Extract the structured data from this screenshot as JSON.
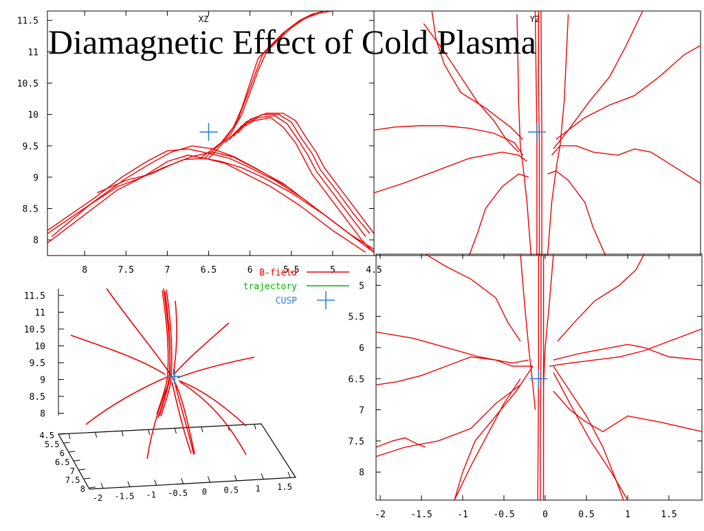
{
  "slide": {
    "title": "Diamagnetic Effect of Cold Plasma"
  },
  "legend": {
    "items": [
      {
        "label": "B-field",
        "color": "#ee0000",
        "marker": "line"
      },
      {
        "label": "trajectory",
        "color": "#00b000",
        "marker": "line"
      },
      {
        "label": "CUSP",
        "color": "#2f7fd8",
        "marker": "cross"
      }
    ]
  },
  "colors": {
    "field": "#ee0000",
    "trajectory": "#00b000",
    "cusp": "#2f7fd8",
    "frame": "#000000"
  },
  "chart_data": [
    {
      "id": "xz",
      "type": "line",
      "title": "XZ",
      "xlim": [
        8.45,
        4.5
      ],
      "ylim": [
        7.75,
        11.65
      ],
      "x_ticks": [
        "8",
        "7.5",
        "7",
        "6.5",
        "6",
        "5.5",
        "5",
        "4.5"
      ],
      "y_ticks": [
        "8",
        "8.5",
        "9",
        "9.5",
        "10",
        "10.5",
        "11",
        "11.5"
      ],
      "cusp": [
        6.5,
        9.72
      ],
      "series": [
        {
          "x": [
            8.45,
            7.95,
            7.6,
            7.3,
            7.0,
            6.75,
            6.55,
            6.35,
            6.1,
            5.85,
            5.5,
            5.1,
            4.7,
            4.5
          ],
          "y": [
            8.1,
            8.55,
            8.85,
            9.0,
            9.25,
            9.35,
            9.3,
            9.25,
            9.15,
            9.0,
            8.75,
            8.4,
            8.0,
            7.8
          ]
        },
        {
          "x": [
            8.45,
            7.9,
            7.55,
            7.25,
            7.0,
            6.75,
            6.5,
            6.25,
            6.0,
            5.7,
            5.35,
            4.95,
            4.55
          ],
          "y": [
            8.15,
            8.65,
            9.0,
            9.25,
            9.42,
            9.45,
            9.38,
            9.3,
            9.15,
            8.95,
            8.65,
            8.25,
            7.85
          ]
        },
        {
          "x": [
            8.4,
            7.9,
            7.5,
            7.2,
            6.95,
            6.7,
            6.45,
            6.2,
            5.9,
            5.55,
            5.15,
            4.75
          ],
          "y": [
            8.05,
            8.6,
            8.98,
            9.22,
            9.4,
            9.5,
            9.45,
            9.33,
            9.12,
            8.85,
            8.45,
            8.05
          ]
        },
        {
          "x": [
            8.45,
            7.95,
            7.6,
            7.3,
            7.05,
            6.8,
            6.55,
            6.3,
            6.05,
            5.75,
            5.4,
            5.0,
            4.6
          ],
          "y": [
            7.95,
            8.45,
            8.8,
            9.0,
            9.15,
            9.28,
            9.3,
            9.22,
            9.05,
            8.85,
            8.55,
            8.15,
            7.8
          ]
        },
        {
          "x": [
            7.85,
            7.5,
            7.2,
            6.95,
            6.7,
            6.45,
            6.2,
            5.95,
            5.6,
            5.2,
            4.8,
            4.5
          ],
          "y": [
            8.75,
            8.95,
            9.05,
            9.2,
            9.33,
            9.4,
            9.32,
            9.15,
            8.9,
            8.5,
            8.1,
            7.85
          ]
        },
        {
          "x": [
            6.6,
            6.35,
            6.2,
            6.1,
            6.0,
            5.9,
            5.75,
            5.6,
            5.45,
            5.3,
            5.15,
            5.0
          ],
          "y": [
            9.3,
            9.55,
            9.8,
            10.1,
            10.5,
            10.9,
            11.1,
            11.3,
            11.45,
            11.55,
            11.62,
            11.65
          ]
        },
        {
          "x": [
            6.55,
            6.3,
            6.15,
            6.05,
            5.95,
            5.85,
            5.7,
            5.55,
            5.4,
            5.25,
            5.1
          ],
          "y": [
            9.3,
            9.6,
            9.9,
            10.25,
            10.6,
            10.95,
            11.15,
            11.35,
            11.5,
            11.6,
            11.65
          ]
        },
        {
          "x": [
            6.5,
            6.25,
            6.1,
            6.0,
            5.9,
            5.8,
            5.65,
            5.5,
            5.35,
            5.2
          ],
          "y": [
            9.3,
            9.65,
            10.0,
            10.35,
            10.7,
            11.0,
            11.2,
            11.38,
            11.52,
            11.62
          ]
        },
        {
          "x": [
            6.3,
            6.15,
            5.95,
            5.75,
            5.6,
            5.45,
            5.35,
            5.25,
            5.05,
            4.85,
            4.65,
            4.5
          ],
          "y": [
            9.55,
            9.75,
            9.9,
            9.95,
            9.8,
            9.55,
            9.3,
            9.05,
            8.7,
            8.35,
            8.0,
            7.8
          ]
        },
        {
          "x": [
            6.25,
            6.1,
            5.9,
            5.7,
            5.55,
            5.42,
            5.3,
            5.2,
            5.0,
            4.8,
            4.6
          ],
          "y": [
            9.6,
            9.82,
            9.95,
            9.98,
            9.85,
            9.6,
            9.35,
            9.1,
            8.75,
            8.4,
            8.05
          ]
        },
        {
          "x": [
            6.2,
            6.05,
            5.85,
            5.65,
            5.5,
            5.38,
            5.25,
            5.15,
            4.95,
            4.75,
            4.55
          ],
          "y": [
            9.65,
            9.88,
            10.0,
            10.0,
            9.88,
            9.62,
            9.38,
            9.12,
            8.78,
            8.42,
            8.1
          ]
        },
        {
          "x": [
            6.15,
            6.0,
            5.8,
            5.6,
            5.45,
            5.33,
            5.2,
            5.1,
            4.9,
            4.7,
            4.5
          ],
          "y": [
            9.7,
            9.92,
            10.02,
            10.02,
            9.9,
            9.65,
            9.4,
            9.15,
            8.8,
            8.45,
            8.1
          ]
        }
      ]
    },
    {
      "id": "yz",
      "type": "line",
      "title": "YZ",
      "xlim": [
        -2.05,
        1.9
      ],
      "ylim": [
        7.75,
        11.65
      ],
      "cusp": [
        -0.08,
        9.72
      ],
      "series": [
        {
          "x": [
            -0.05,
            -0.05,
            -0.06,
            -0.06
          ],
          "y": [
            7.75,
            9.5,
            10.5,
            11.65
          ]
        },
        {
          "x": [
            -0.02,
            -0.02,
            -0.03
          ],
          "y": [
            7.75,
            9.7,
            11.65
          ]
        },
        {
          "x": [
            -0.08,
            -0.08,
            -0.1
          ],
          "y": [
            7.75,
            9.7,
            11.65
          ]
        },
        {
          "x": [
            -0.15,
            -0.2,
            -0.25,
            -0.28,
            -0.3,
            -0.32
          ],
          "y": [
            7.75,
            8.6,
            9.2,
            9.5,
            10.2,
            11.6
          ]
        },
        {
          "x": [
            0.05,
            0.1,
            0.16,
            0.2,
            0.25,
            0.3
          ],
          "y": [
            7.75,
            8.6,
            9.2,
            9.5,
            10.2,
            11.6
          ]
        },
        {
          "x": [
            -0.25,
            -0.35,
            -0.6,
            -0.9,
            -1.2,
            -1.5,
            -1.8,
            -2.05
          ],
          "y": [
            9.35,
            9.55,
            9.7,
            9.78,
            9.82,
            9.82,
            9.8,
            9.75
          ]
        },
        {
          "x": [
            0.1,
            0.2,
            0.4,
            0.6,
            0.9,
            1.1,
            1.3,
            1.6,
            1.9
          ],
          "y": [
            9.35,
            9.5,
            9.5,
            9.4,
            9.35,
            9.45,
            9.4,
            9.15,
            8.9
          ]
        },
        {
          "x": [
            -0.2,
            -0.3,
            -0.5,
            -0.9,
            -1.3,
            -1.7,
            -2.05
          ],
          "y": [
            9.25,
            9.35,
            9.4,
            9.3,
            9.1,
            8.9,
            8.75
          ]
        },
        {
          "x": [
            -0.18,
            -0.3,
            -0.5,
            -0.7,
            -0.8,
            -0.9
          ],
          "y": [
            9.0,
            9.05,
            8.85,
            8.5,
            8.1,
            7.75
          ]
        },
        {
          "x": [
            0.05,
            0.15,
            0.3,
            0.5,
            0.6,
            0.75
          ],
          "y": [
            9.05,
            9.1,
            8.95,
            8.6,
            8.2,
            7.75
          ]
        },
        {
          "x": [
            -0.25,
            -0.4,
            -0.7,
            -1.0,
            -1.2,
            -1.3,
            -1.35
          ],
          "y": [
            9.6,
            9.8,
            10.1,
            10.35,
            10.8,
            11.2,
            11.65
          ]
        },
        {
          "x": [
            0.15,
            0.3,
            0.5,
            0.8,
            1.1,
            1.4,
            1.7,
            1.9
          ],
          "y": [
            9.6,
            9.75,
            9.95,
            10.15,
            10.3,
            10.6,
            10.95,
            11.1
          ]
        },
        {
          "x": [
            -0.3,
            -0.45,
            -0.6,
            -0.8,
            -1.0,
            -1.2,
            -1.45
          ],
          "y": [
            9.4,
            9.6,
            9.9,
            10.2,
            10.6,
            11.0,
            11.45
          ]
        },
        {
          "x": [
            0.12,
            0.3,
            0.55,
            0.8,
            1.0,
            1.2
          ],
          "y": [
            9.45,
            9.75,
            10.2,
            10.6,
            11.1,
            11.65
          ]
        }
      ]
    },
    {
      "id": "xy",
      "type": "line",
      "xlim": [
        -2.05,
        1.9
      ],
      "ylim": [
        4.5,
        8.45
      ],
      "y_reversed": true,
      "x_ticks": [
        "-2",
        "-1.5",
        "-1",
        "-0.5",
        "0",
        "0.5",
        "1",
        "1.5"
      ],
      "y_ticks": [
        "5",
        "5.5",
        "6",
        "6.5",
        "7",
        "7.5",
        "8"
      ],
      "cusp": [
        -0.08,
        6.5
      ],
      "series": [
        {
          "x": [
            -0.05,
            -0.05,
            -0.06,
            -0.06
          ],
          "y": [
            4.5,
            6.0,
            7.5,
            8.45
          ]
        },
        {
          "x": [
            -0.02,
            -0.02,
            -0.02
          ],
          "y": [
            4.5,
            6.5,
            8.45
          ]
        },
        {
          "x": [
            -0.08,
            -0.08,
            -0.09
          ],
          "y": [
            4.5,
            6.5,
            8.45
          ]
        },
        {
          "x": [
            -0.3,
            -0.25,
            -0.2,
            -0.15,
            -0.12
          ],
          "y": [
            4.5,
            5.3,
            6.0,
            6.6,
            7.0
          ]
        },
        {
          "x": [
            0.1,
            0.05,
            0.0,
            -0.02
          ],
          "y": [
            4.5,
            5.3,
            6.0,
            6.6
          ]
        },
        {
          "x": [
            -0.2,
            -0.4,
            -0.8,
            -1.2,
            -1.6,
            -2.05
          ],
          "y": [
            6.2,
            6.25,
            6.15,
            6.0,
            5.85,
            5.75
          ]
        },
        {
          "x": [
            -0.15,
            -0.4,
            -0.6,
            -0.9,
            -1.2,
            -1.5,
            -1.8,
            -2.05
          ],
          "y": [
            6.3,
            6.3,
            6.2,
            6.15,
            6.3,
            6.45,
            6.55,
            6.6
          ]
        },
        {
          "x": [
            0.05,
            0.3,
            0.6,
            0.9,
            1.2,
            1.5,
            1.9
          ],
          "y": [
            6.3,
            6.25,
            6.2,
            6.15,
            6.05,
            5.9,
            5.7
          ]
        },
        {
          "x": [
            0.1,
            0.4,
            0.8,
            1.0,
            1.2,
            1.5,
            1.9
          ],
          "y": [
            6.2,
            6.1,
            6.0,
            5.95,
            6.0,
            6.15,
            6.2
          ]
        },
        {
          "x": [
            -0.3,
            -0.6,
            -0.9,
            -1.3,
            -1.7,
            -2.05
          ],
          "y": [
            6.6,
            6.9,
            7.3,
            7.5,
            7.6,
            7.75
          ]
        },
        {
          "x": [
            -1.45,
            -1.55,
            -1.7,
            -1.85,
            -2.05
          ],
          "y": [
            7.6,
            7.55,
            7.45,
            7.5,
            7.6
          ]
        },
        {
          "x": [
            0.1,
            0.3,
            0.5,
            0.7,
            1.0,
            1.4,
            1.9
          ],
          "y": [
            6.7,
            7.0,
            7.2,
            7.35,
            7.1,
            7.2,
            7.35
          ]
        },
        {
          "x": [
            -0.3,
            -0.5,
            -0.7,
            -0.9,
            -1.1
          ],
          "y": [
            6.5,
            6.9,
            7.4,
            7.9,
            8.45
          ]
        },
        {
          "x": [
            0.1,
            0.3,
            0.55,
            0.8,
            1.0
          ],
          "y": [
            6.4,
            6.9,
            7.5,
            8.0,
            8.45
          ]
        },
        {
          "x": [
            -0.3,
            -0.45,
            -0.6,
            -0.9,
            -1.2,
            -1.45
          ],
          "y": [
            5.9,
            5.6,
            5.2,
            4.9,
            4.7,
            4.5
          ]
        },
        {
          "x": [
            0.15,
            0.35,
            0.6,
            0.9,
            1.1,
            1.2
          ],
          "y": [
            5.9,
            5.6,
            5.25,
            5.0,
            4.75,
            4.5
          ]
        },
        {
          "x": [
            -0.15,
            -0.35,
            -0.6,
            -0.85,
            -1.0,
            -1.1
          ],
          "y": [
            6.3,
            6.7,
            7.1,
            7.5,
            8.0,
            8.45
          ]
        },
        {
          "x": [
            0.1,
            0.3,
            0.5,
            0.7,
            0.85,
            0.95
          ],
          "y": [
            6.3,
            6.7,
            7.1,
            7.6,
            8.1,
            8.45
          ]
        }
      ]
    },
    {
      "id": "3d",
      "type": "line",
      "projection": "3d",
      "z_ticks": [
        "11.5",
        "11",
        "10.5",
        "10",
        "9.5",
        "9",
        "8.5",
        "8"
      ],
      "x_ticks": [
        "-2",
        "-1.5",
        "-1",
        "-0.5",
        "0",
        "0.5",
        "1",
        "1.5"
      ],
      "y_ticks": [
        "4.5",
        "5.5",
        "6",
        "6.5",
        "7",
        "7.5",
        "8"
      ]
    }
  ]
}
